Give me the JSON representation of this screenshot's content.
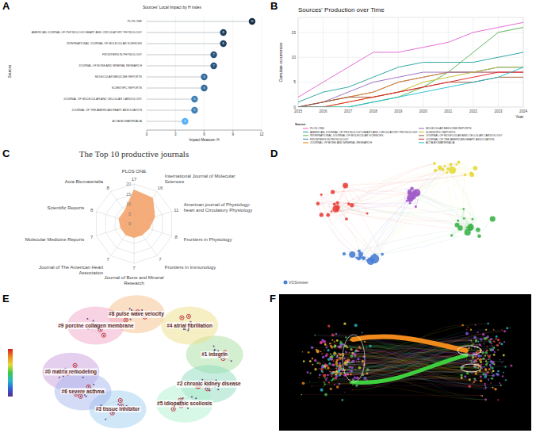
{
  "chart_data": [
    {
      "panel": "A",
      "type": "lollipop",
      "title": "Sources' Local Impact by H index",
      "orientation": "horizontal",
      "x_label": "Impact Measure: H",
      "y_label": "Sources",
      "categories": [
        "PLOS ONE",
        "AMERICAN JOURNAL OF PHYSIOLOGY-HEART AND CIRCULATORY PHYSIOLOGY",
        "INTERNATIONAL JOURNAL OF MOLECULAR SCIENCES",
        "FRONTIERS IN PHYSIOLOGY",
        "JOURNAL OF BONE AND MINERAL RESEARCH",
        "MOLECULAR MEDICINE REPORTS",
        "SCIENTIFIC REPORTS",
        "JOURNAL OF MOLECULAR AND CELLULAR CARDIOLOGY",
        "JOURNAL OF THE AMERICAN HEART ASSOCIATION",
        "ACTA BIOMATERIALIA"
      ],
      "values": [
        11,
        8,
        8,
        7,
        7,
        6,
        6,
        5,
        5,
        4
      ],
      "colors": [
        "#132b43",
        "#1d3f5e",
        "#1d3f5e",
        "#27537b",
        "#27537b",
        "#336a98",
        "#336a98",
        "#3f80b6",
        "#3f80b6",
        "#56b1f7"
      ],
      "xlim": [
        0,
        12
      ],
      "xticks": [
        0,
        3,
        6,
        9,
        12
      ],
      "data_labels": true
    },
    {
      "panel": "B",
      "type": "line",
      "title": "Sources' Production over Time",
      "x_label": "Year",
      "y_label": "Cumulate occurrences",
      "x": [
        2015,
        2016,
        2017,
        2018,
        2019,
        2020,
        2021,
        2022,
        2023,
        2024
      ],
      "xlim": [
        2015,
        2024
      ],
      "xticks": [
        2015,
        2016,
        2017,
        2018,
        2019,
        2020,
        2021,
        2022,
        2023,
        2024
      ],
      "ylim": [
        0,
        18
      ],
      "yticks": [
        0,
        5,
        10,
        15
      ],
      "grid": true,
      "legend": "bottom",
      "legend_title": "Source",
      "series": [
        {
          "name": "PLOS ONE",
          "color": "#e05fd0",
          "values": [
            2,
            5,
            8,
            11,
            11,
            12,
            13,
            15,
            16,
            17
          ]
        },
        {
          "name": "AMERICAN JOURNAL OF PHYSIOLOGY-HEART AND CIRCULATORY PHYSIOLOGY",
          "color": "#1b9e9e",
          "values": [
            1,
            3,
            4,
            6,
            8,
            9,
            9,
            9,
            10,
            11
          ]
        },
        {
          "name": "INTERNATIONAL JOURNAL OF MOLECULAR SCIENCES",
          "color": "#4daf4a",
          "values": [
            0,
            0,
            0,
            1,
            2,
            4,
            7,
            11,
            15,
            16
          ]
        },
        {
          "name": "FRONTIERS IN PHYSIOLOGY",
          "color": "#3182bd",
          "values": [
            0,
            1,
            2,
            3,
            5,
            6,
            7,
            7,
            8,
            8
          ]
        },
        {
          "name": "JOURNAL OF BONE AND MINERAL RESEARCH",
          "color": "#ff7f0e",
          "values": [
            0,
            1,
            2,
            3,
            5,
            6,
            7,
            7,
            7,
            7
          ]
        },
        {
          "name": "MOLECULAR MEDICINE REPORTS",
          "color": "#9467bd",
          "values": [
            0,
            1,
            3,
            5,
            6,
            7,
            7,
            7,
            7,
            7
          ]
        },
        {
          "name": "SCIENTIFIC REPORTS",
          "color": "#bcbd22",
          "values": [
            0,
            0,
            1,
            2,
            3,
            5,
            6,
            7,
            8,
            8
          ]
        },
        {
          "name": "JOURNAL OF MOLECULAR AND CELLULAR CARDIOLOGY",
          "color": "#a0522d",
          "values": [
            0,
            1,
            2,
            2,
            3,
            4,
            5,
            5,
            6,
            6
          ]
        },
        {
          "name": "JOURNAL OF THE AMERICAN HEART ASSOCIATION",
          "color": "#e41a1c",
          "values": [
            0,
            0,
            1,
            2,
            3,
            4,
            5,
            6,
            7,
            7
          ]
        },
        {
          "name": "ACTA BIOMATERIALIA",
          "color": "#17becf",
          "values": [
            0,
            0,
            0,
            1,
            2,
            3,
            4,
            5,
            6,
            8
          ]
        }
      ]
    },
    {
      "panel": "C",
      "type": "radar",
      "title": "The Top 10 productive journals",
      "categories": [
        "PLOS ONE",
        "International Journal of Molecular Sciences",
        "American journal of Physiology- heart and Circulatory Physiology",
        "Frontiers in Physiology",
        "Frontiers in Immunology",
        "Journal of Bone and Mineral Research",
        "Journal of The American Heart Association",
        "Molecular Medicine Reports",
        "Scientific Reports",
        "Acta Biomaterialia"
      ],
      "values": [
        17,
        16,
        11,
        8,
        7,
        7,
        7,
        7,
        8,
        8
      ],
      "rlim": [
        0,
        20
      ],
      "rticks": [
        0,
        5,
        10,
        15,
        20
      ],
      "color": "#f2a36b",
      "data_labels": true
    },
    {
      "panel": "D",
      "type": "network",
      "colors": [
        "#e8413c",
        "#3cb44b",
        "#4a7fd4",
        "#e6d93a",
        "#a05cc8"
      ],
      "logo": "VOSviewer"
    },
    {
      "panel": "E",
      "type": "cluster_map",
      "clusters": [
        {
          "label": "#0 matrix remodeling",
          "color": "#c9a0e0"
        },
        {
          "label": "#1 integrin",
          "color": "#a8e0a0"
        },
        {
          "label": "#2 chronic kidney disease",
          "color": "#8fdcc0"
        },
        {
          "label": "#3 tissue inhibitor",
          "color": "#9fd0f0"
        },
        {
          "label": "#4 atrial fibrillation",
          "color": "#f0e08a"
        },
        {
          "label": "#5 idiopathic scoliosis",
          "color": "#b0f0d0"
        },
        {
          "label": "#6 severe asthma",
          "color": "#a8b8f0"
        },
        {
          "label": "#8 pulse wave velocity",
          "color": "#f5c08a"
        },
        {
          "label": "#9 porcine collagen membrane",
          "color": "#f0a8c8"
        }
      ]
    },
    {
      "panel": "F",
      "type": "dual_map",
      "colors": [
        "#f08a1c",
        "#3ecf3e"
      ]
    }
  ]
}
